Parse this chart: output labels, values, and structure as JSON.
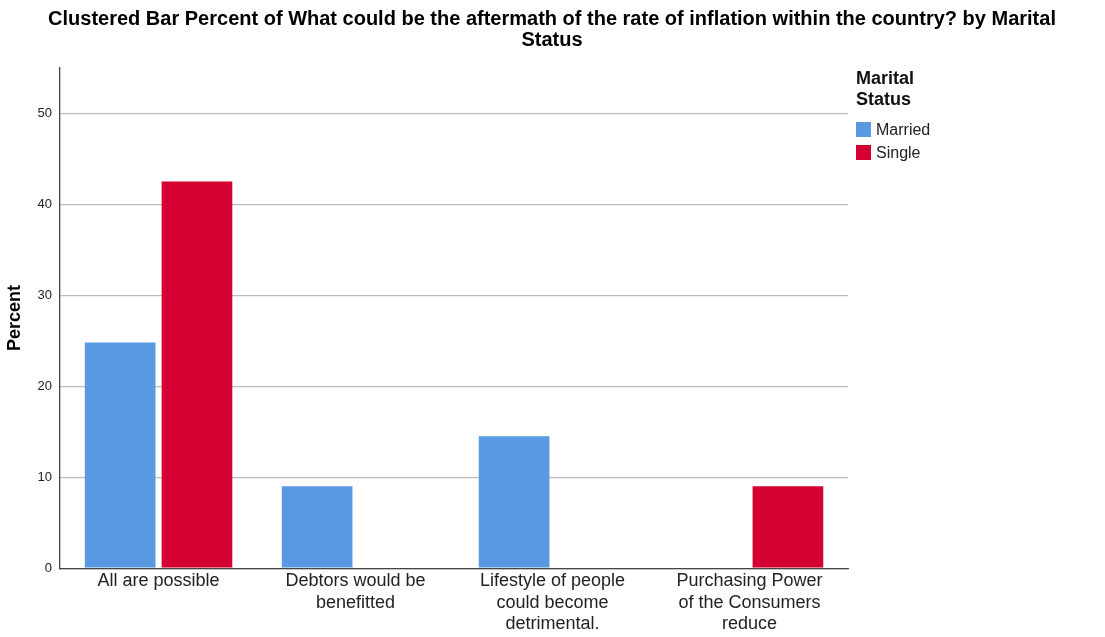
{
  "chart_data": {
    "type": "bar",
    "title": "Clustered Bar Percent of What could be the aftermath of the rate of inflation within the country? by Marital Status",
    "ylabel": "Percent",
    "legend_title": "Marital Status",
    "categories": [
      "All are possible",
      "Debtors would be benefitted",
      "Lifestyle of people could become detrimental.",
      "Purchasing Power of the Consumers reduce"
    ],
    "series": [
      {
        "name": "Married",
        "color": "#5899e2",
        "values": [
          24.8,
          9.0,
          14.5,
          null
        ]
      },
      {
        "name": "Single",
        "color": "#d50032",
        "values": [
          42.5,
          null,
          null,
          9.0
        ]
      }
    ],
    "ylim": [
      0,
      55
    ],
    "yticks": [
      0,
      10,
      20,
      30,
      40,
      50
    ],
    "grid": "y",
    "legend": "top right"
  }
}
